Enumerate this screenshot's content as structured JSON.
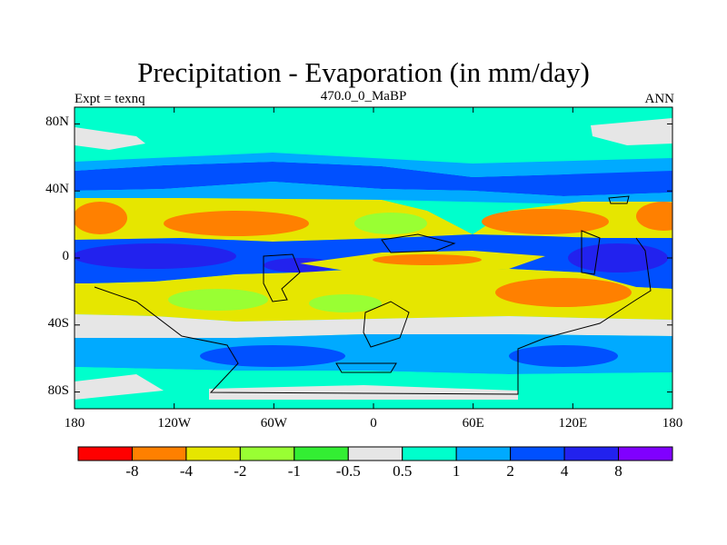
{
  "chart_data": {
    "type": "heatmap",
    "title": "Precipitation - Evaporation (in mm/day)",
    "subtitle_left": "Expt = texnq",
    "subtitle_center": "470.0_0_MaBP",
    "subtitle_right": "ANN",
    "x_ticks": [
      "180",
      "120W",
      "60W",
      "0",
      "60E",
      "120E",
      "180"
    ],
    "x_tick_values": [
      -180,
      -120,
      -60,
      0,
      60,
      120,
      180
    ],
    "y_ticks": [
      "80N",
      "40N",
      "0",
      "40S",
      "80S"
    ],
    "y_tick_values": [
      80,
      40,
      0,
      -40,
      -80
    ],
    "xlim": [
      -180,
      180
    ],
    "ylim": [
      -90,
      90
    ],
    "colorbar": {
      "colors": [
        "#ff0000",
        "#ff8000",
        "#e6e600",
        "#99ff33",
        "#33ee33",
        "#e6e6e6",
        "#00ffcc",
        "#00aaff",
        "#0050ff",
        "#2222ee",
        "#8000ff"
      ],
      "labels": [
        "-8",
        "-4",
        "-2",
        "-1",
        "-0.5",
        "0.5",
        "1",
        "2",
        "4",
        "8"
      ],
      "levels": [
        -8,
        -4,
        -2,
        -1,
        -0.5,
        0.5,
        1,
        2,
        4,
        8
      ]
    }
  }
}
